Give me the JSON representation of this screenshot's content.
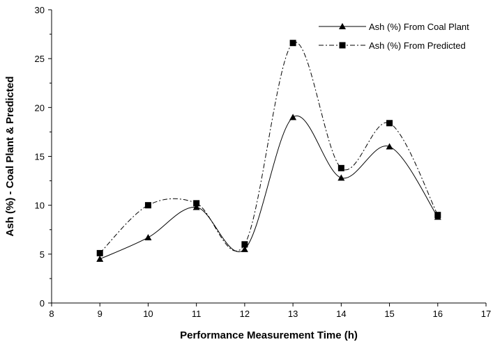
{
  "chart_data": {
    "type": "line",
    "xlabel": "Performance Measurement Time (h)",
    "ylabel": "Ash (%) - Coal Plant & Predicted",
    "xlim": [
      8,
      17
    ],
    "ylim": [
      0,
      30
    ],
    "x_ticks": [
      8,
      9,
      10,
      11,
      12,
      13,
      14,
      15,
      16,
      17
    ],
    "y_ticks": [
      0,
      5,
      10,
      15,
      20,
      25,
      30
    ],
    "x": [
      9,
      10,
      11,
      12,
      13,
      14,
      15,
      16
    ],
    "series": [
      {
        "name": "Ash (%) From Coal Plant",
        "values": [
          4.5,
          6.7,
          9.8,
          5.5,
          19.0,
          12.8,
          16.0,
          8.8
        ],
        "marker": "triangle",
        "line_style": "solid",
        "color": "#000000"
      },
      {
        "name": "Ash (%) From Predicted",
        "values": [
          5.1,
          10.0,
          10.2,
          6.0,
          26.6,
          13.8,
          18.4,
          9.0
        ],
        "marker": "square",
        "line_style": "dash-dot",
        "color": "#000000"
      }
    ],
    "legend_position": "top-right",
    "grid": false
  }
}
